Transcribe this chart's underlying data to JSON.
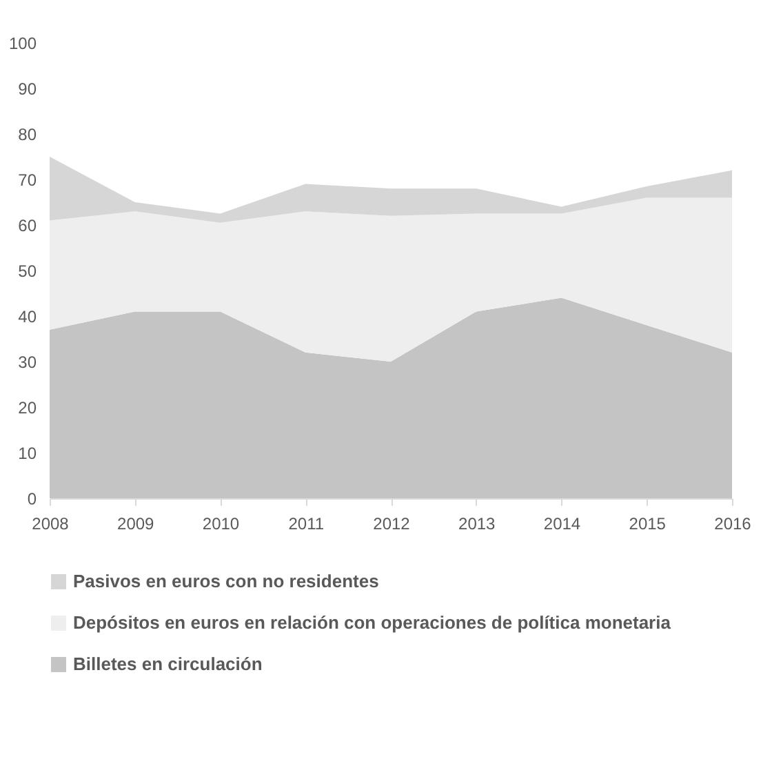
{
  "chart_data": {
    "type": "area",
    "stacked": true,
    "x": [
      2008,
      2009,
      2010,
      2011,
      2012,
      2013,
      2014,
      2015,
      2016
    ],
    "series": [
      {
        "name": "Billetes en circulación",
        "color": "#c4c4c4",
        "values": [
          37,
          41,
          41,
          32,
          30,
          41,
          44,
          38,
          32
        ]
      },
      {
        "name": "Depósitos en euros en relación con operaciones de política monetaria",
        "color": "#eeeeee",
        "values": [
          24,
          22,
          19.5,
          31,
          32,
          21.5,
          18.5,
          28,
          34
        ]
      },
      {
        "name": "Pasivos en euros con no residentes",
        "color": "#d6d6d6",
        "values": [
          14,
          2,
          2,
          6,
          6,
          5.5,
          1.5,
          2.5,
          6
        ]
      }
    ],
    "xlim": [
      2008,
      2016
    ],
    "xticks": [
      2008,
      2009,
      2010,
      2011,
      2012,
      2013,
      2014,
      2015,
      2016
    ],
    "ylim": [
      0,
      100
    ],
    "yticks": [
      0,
      10,
      20,
      30,
      40,
      50,
      60,
      70,
      80,
      90,
      100
    ],
    "grid": false,
    "legend": "bottom"
  }
}
